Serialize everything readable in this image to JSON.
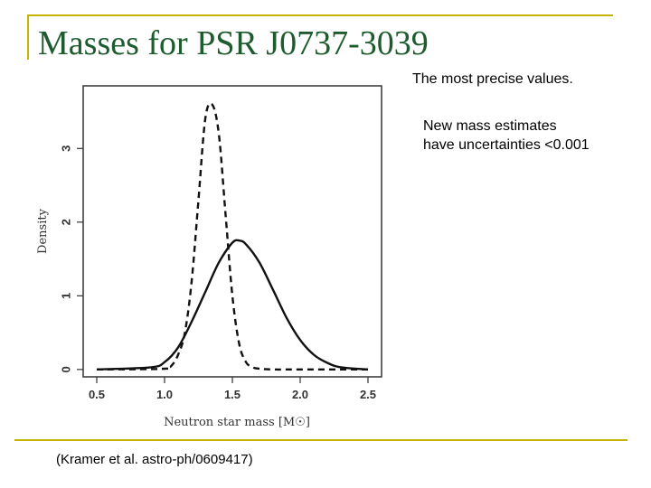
{
  "slide": {
    "title": "Masses for PSR J0737-3039",
    "note_precise": "The most precise values.",
    "note_line1": "New mass estimates",
    "note_line2": "have uncertainties <0.001",
    "citation": "(Kramer et al. astro-ph/0609417)",
    "accent_color": "#c8b400",
    "title_color": "#1e5b2f"
  },
  "chart_data": {
    "type": "line",
    "title": "",
    "xlabel": "Neutron star mass [M☉]",
    "ylabel": "Density",
    "xlim": [
      0.4,
      2.6
    ],
    "ylim": [
      -0.1,
      3.85
    ],
    "x_ticks": [
      "0.5",
      "1.0",
      "1.5",
      "2.0",
      "2.5"
    ],
    "y_ticks": [
      "0",
      "1",
      "2",
      "3"
    ],
    "grid": false,
    "series": [
      {
        "style": "dashed",
        "x": [
          0.5,
          1.0,
          1.05,
          1.1,
          1.15,
          1.2,
          1.25,
          1.3,
          1.35,
          1.4,
          1.45,
          1.5,
          1.55,
          1.6,
          1.65,
          1.7,
          1.8,
          2.0,
          2.5
        ],
        "y": [
          0.0,
          0.01,
          0.05,
          0.2,
          0.5,
          1.2,
          2.3,
          3.4,
          3.6,
          3.2,
          2.1,
          1.0,
          0.35,
          0.1,
          0.03,
          0.01,
          0.0,
          0.0,
          0.0
        ]
      },
      {
        "style": "solid",
        "x": [
          0.5,
          0.9,
          1.0,
          1.1,
          1.2,
          1.3,
          1.4,
          1.5,
          1.55,
          1.6,
          1.7,
          1.8,
          1.9,
          2.0,
          2.1,
          2.2,
          2.3,
          2.5
        ],
        "y": [
          0.0,
          0.03,
          0.1,
          0.3,
          0.65,
          1.05,
          1.45,
          1.72,
          1.75,
          1.7,
          1.45,
          1.08,
          0.7,
          0.4,
          0.2,
          0.09,
          0.03,
          0.0
        ]
      }
    ]
  }
}
